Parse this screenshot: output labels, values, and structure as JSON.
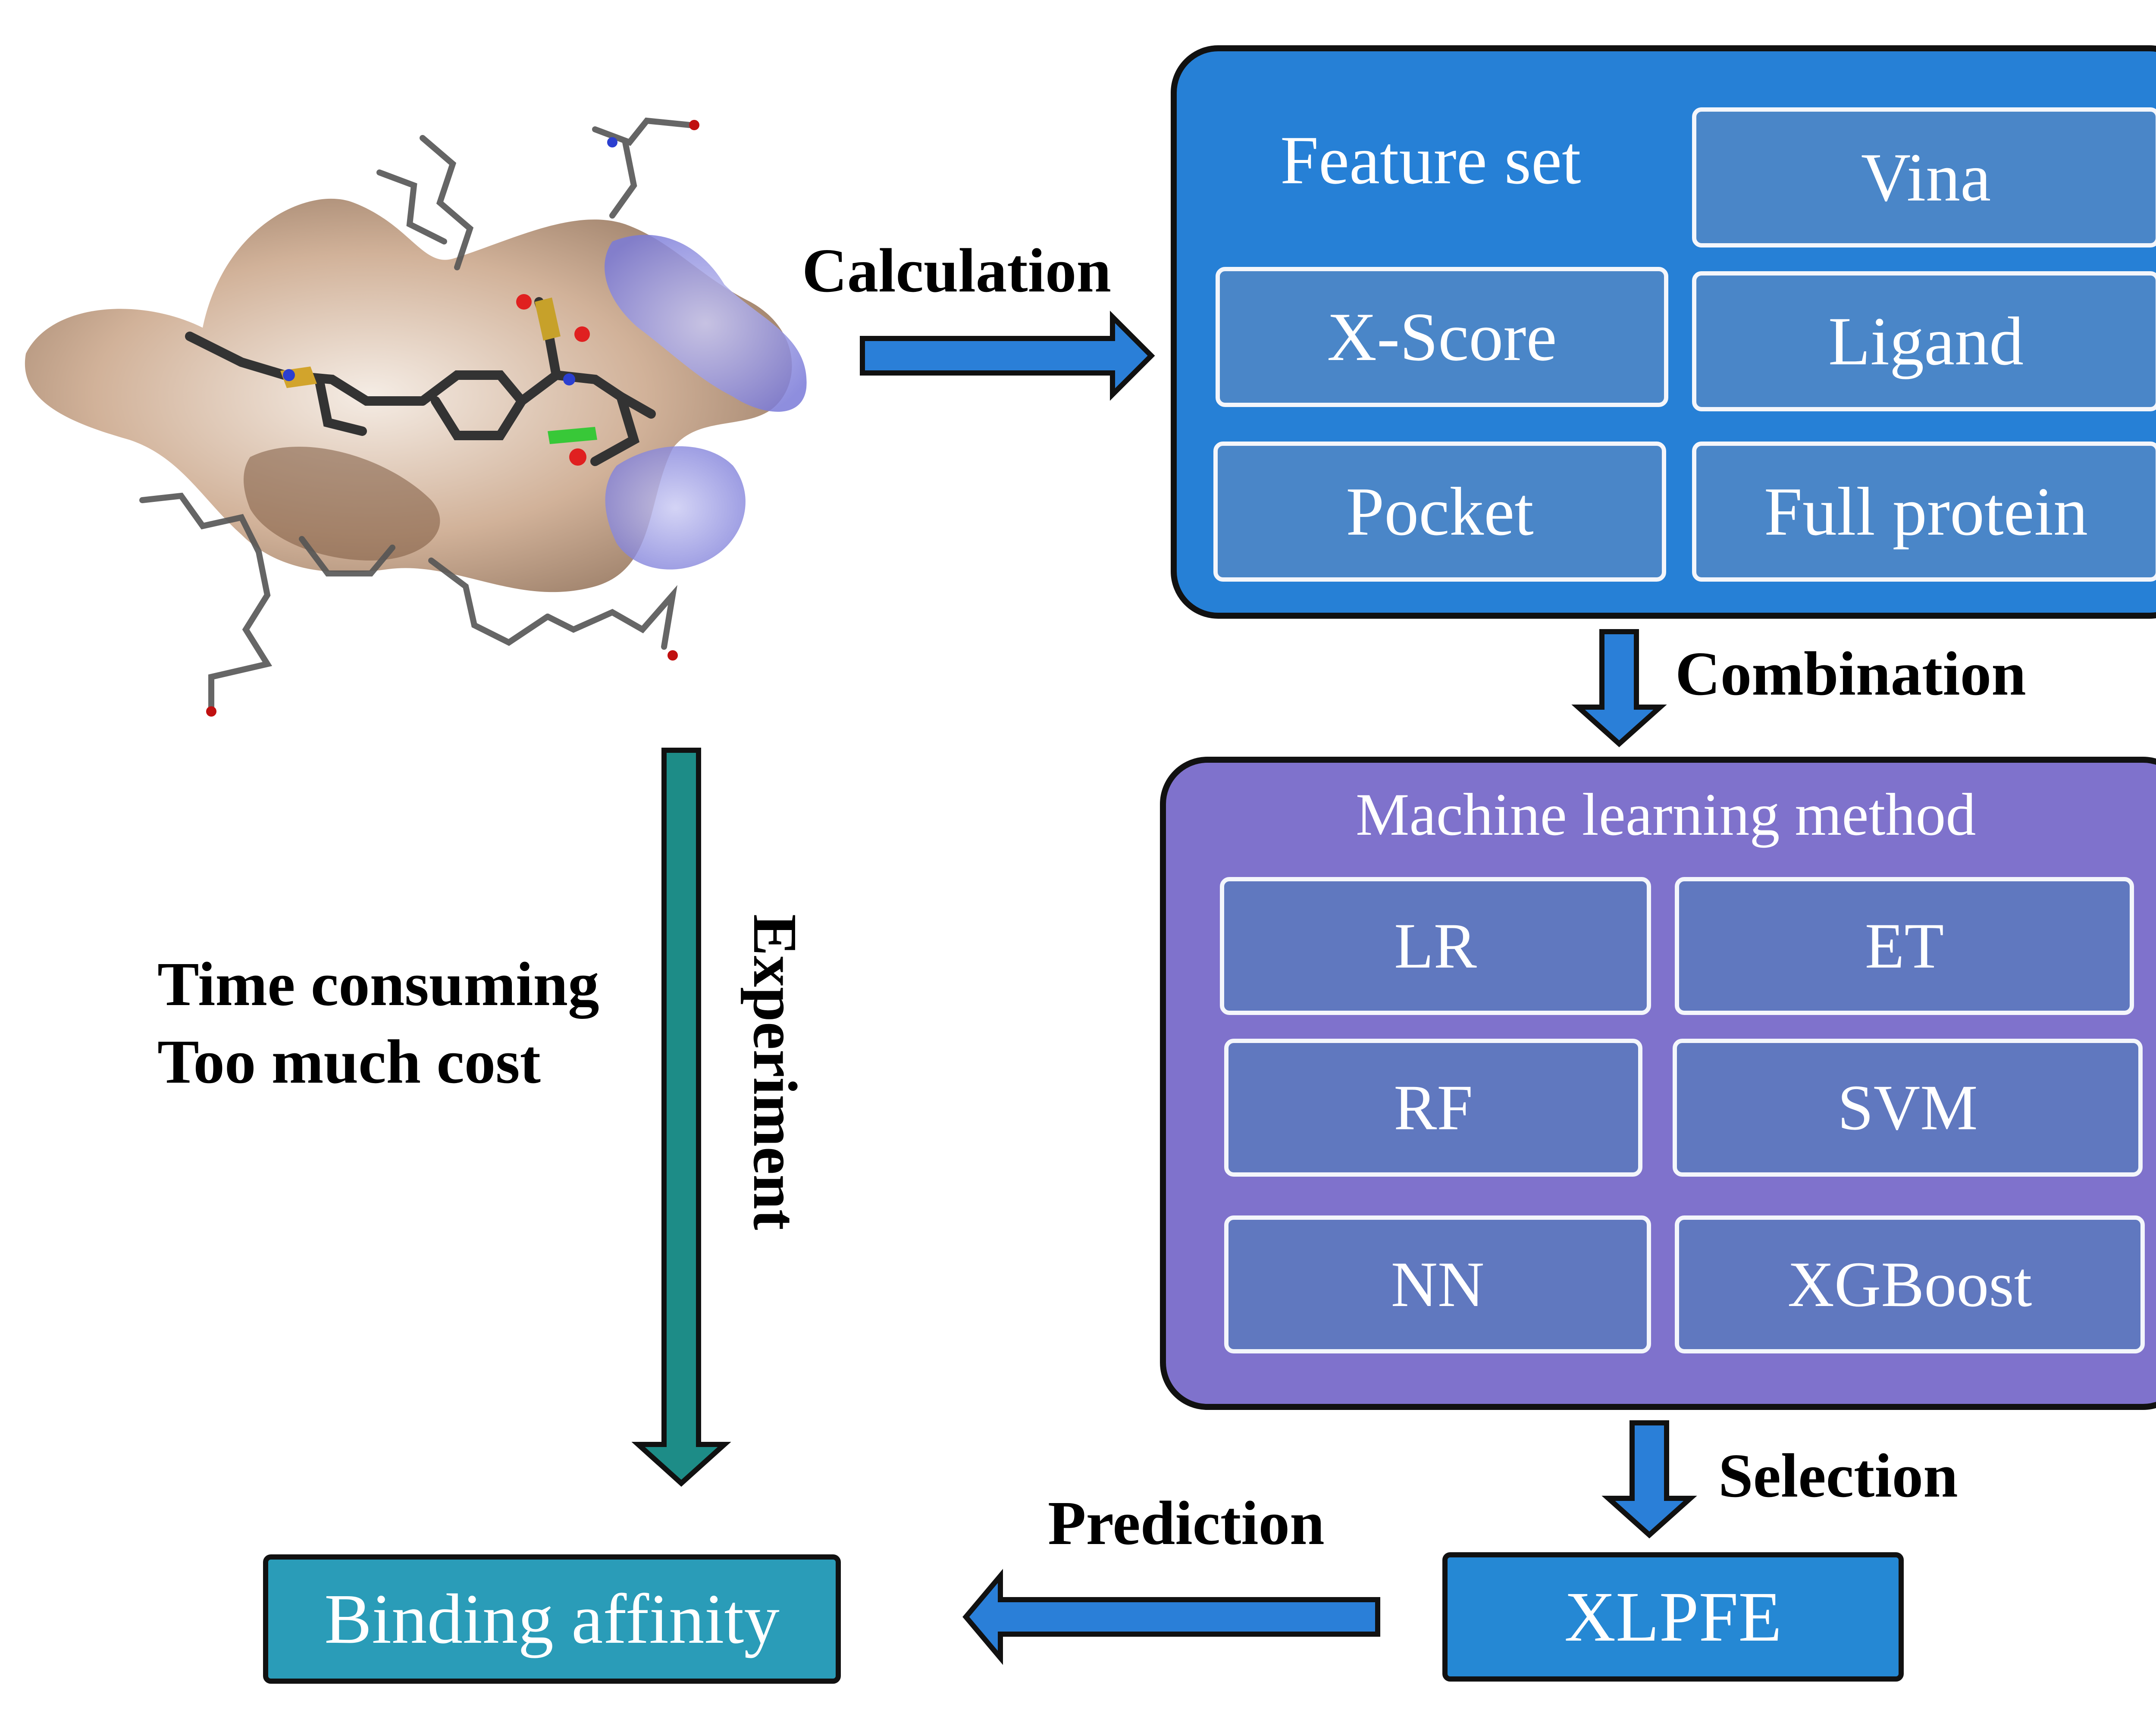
{
  "feature_panel": {
    "title": "Feature set",
    "items": [
      "Vina",
      "X-Score",
      "Ligand",
      "Pocket",
      "Full protein"
    ]
  },
  "ml_panel": {
    "title": "Machine learning method",
    "items": [
      "LR",
      "ET",
      "RF",
      "SVM",
      "NN",
      "XGBoost"
    ]
  },
  "arrows": {
    "calculation": "Calculation",
    "combination": "Combination",
    "selection": "Selection",
    "prediction": "Prediction",
    "experiment": "Experiment"
  },
  "drawbacks": [
    "Time consuming",
    "Too much cost"
  ],
  "result_box": "XLPFE",
  "target_box": "Binding affinity",
  "colors": {
    "feature_panel": "#2680d6",
    "ml_panel": "#7f72cc",
    "blue_arrow": "#2a7fd8",
    "teal_arrow": "#1d8c87",
    "binding_box": "#2a9cb8",
    "xlpfe_box": "#2588d4"
  }
}
